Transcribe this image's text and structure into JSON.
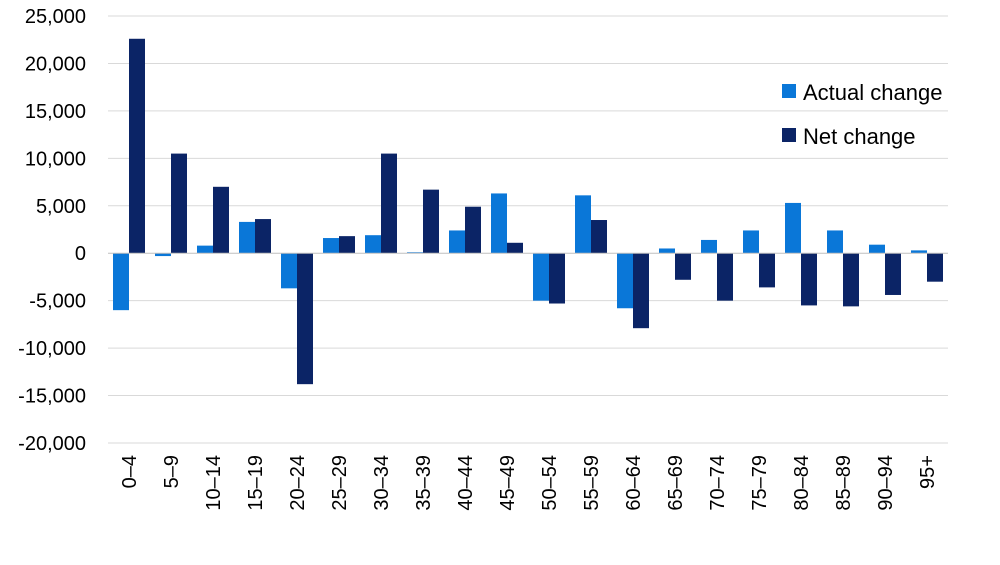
{
  "chart_data": {
    "type": "bar",
    "title": "",
    "xlabel": "",
    "ylabel": "",
    "ylim": [
      -20000,
      25000
    ],
    "yticks": [
      25000,
      20000,
      15000,
      10000,
      5000,
      0,
      -5000,
      -10000,
      -15000,
      -20000
    ],
    "ytick_labels": [
      "25,000",
      "20,000",
      "15,000",
      "10,000",
      "5,000",
      "0",
      "-5,000",
      "-10,000",
      "-15,000",
      "-20,000"
    ],
    "grid": true,
    "legend_position": "top-right",
    "categories": [
      "0–4",
      "5–9",
      "10–14",
      "15–19",
      "20–24",
      "25–29",
      "30–34",
      "35–39",
      "40–44",
      "45–49",
      "50–54",
      "55–59",
      "60–64",
      "65–69",
      "70–74",
      "75–79",
      "80–84",
      "85–89",
      "90–94",
      "95+"
    ],
    "series": [
      {
        "name": "Actual change",
        "color": "#0a77d8",
        "values": [
          -6000,
          -300,
          800,
          3300,
          -3700,
          1600,
          1900,
          100,
          2400,
          6300,
          -5000,
          6100,
          -5800,
          500,
          1400,
          2400,
          5300,
          2400,
          900,
          300
        ]
      },
      {
        "name": "Net change",
        "color": "#0b2466",
        "values": [
          22600,
          10500,
          7000,
          3600,
          -13800,
          1800,
          10500,
          6700,
          4900,
          1100,
          -5300,
          3500,
          -7900,
          -2800,
          -5000,
          -3600,
          -5500,
          -5600,
          -4400,
          -3000
        ]
      }
    ]
  }
}
